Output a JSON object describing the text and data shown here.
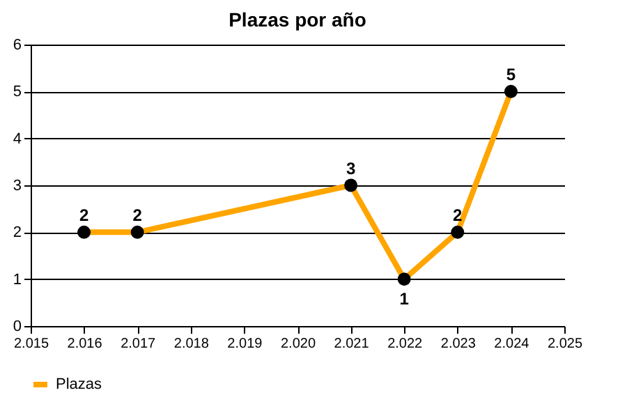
{
  "chart_data": {
    "type": "line",
    "title": "Plazas por año",
    "x": [
      2016,
      2017,
      2021,
      2022,
      2023,
      2024
    ],
    "series": [
      {
        "name": "Plazas",
        "color": "#ffa500",
        "values": [
          2,
          2,
          3,
          1,
          2,
          5
        ]
      }
    ],
    "xlim": [
      2015,
      2025
    ],
    "xticks": [
      {
        "value": 2015,
        "label": "2.015"
      },
      {
        "value": 2016,
        "label": "2.016"
      },
      {
        "value": 2017,
        "label": "2.017"
      },
      {
        "value": 2018,
        "label": "2.018"
      },
      {
        "value": 2019,
        "label": "2.019"
      },
      {
        "value": 2020,
        "label": "2.020"
      },
      {
        "value": 2021,
        "label": "2.021"
      },
      {
        "value": 2022,
        "label": "2.022"
      },
      {
        "value": 2023,
        "label": "2.023"
      },
      {
        "value": 2024,
        "label": "2.024"
      },
      {
        "value": 2025,
        "label": "2.025"
      }
    ],
    "ylim": [
      0,
      6
    ],
    "yticks": [
      0,
      1,
      2,
      3,
      4,
      5,
      6
    ],
    "grid": "y",
    "legend": "bottom left",
    "marker": "circle",
    "line_style": "solid",
    "data_labels": true
  }
}
